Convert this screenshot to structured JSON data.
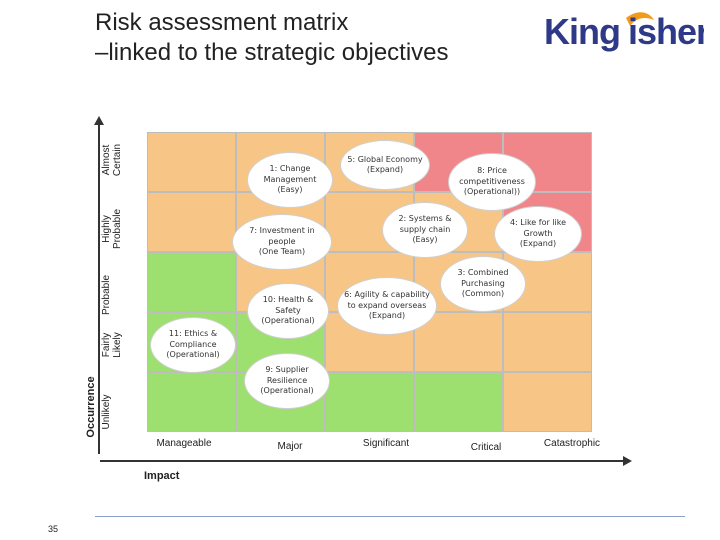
{
  "title": {
    "line1": "Risk assessment matrix",
    "line2": "–linked to the strategic objectives"
  },
  "logo": {
    "text": "Kingfisher"
  },
  "axes": {
    "y_title": "Occurrence",
    "x_title": "Impact",
    "rows": [
      "Almost\nCertain",
      "Highly\nProbable",
      "Probable",
      "Fairly\nLikely",
      "Unlikely"
    ],
    "columns": [
      "Manageable",
      "Major",
      "Significant",
      "Critical",
      "Catastrophic"
    ]
  },
  "colors": {
    "green": "#9de06f",
    "amber": "#f7c687",
    "red": "#f0858a"
  },
  "matrix": [
    [
      "amber",
      "amber",
      "amber",
      "red",
      "red"
    ],
    [
      "amber",
      "amber",
      "amber",
      "amber",
      "red"
    ],
    [
      "green",
      "amber",
      "amber",
      "amber",
      "amber"
    ],
    [
      "green",
      "green",
      "amber",
      "amber",
      "amber"
    ],
    [
      "green",
      "green",
      "green",
      "green",
      "amber"
    ]
  ],
  "risks": [
    {
      "id": "risk-1",
      "text": "1: Change\nManagement\n(Easy)"
    },
    {
      "id": "risk-5",
      "text": "5: Global Economy\n(Expand)"
    },
    {
      "id": "risk-8",
      "text": "8: Price\ncompetitiveness\n(Operational))"
    },
    {
      "id": "risk-2",
      "text": "2: Systems &\nsupply chain\n(Easy)"
    },
    {
      "id": "risk-4",
      "text": "4: Like for like\nGrowth\n(Expand)"
    },
    {
      "id": "risk-7",
      "text": "7: Investment in\npeople\n(One Team)"
    },
    {
      "id": "risk-3",
      "text": "3: Combined\nPurchasing\n(Common)"
    },
    {
      "id": "risk-10",
      "text": "10: Health &\nSafety\n(Operational)"
    },
    {
      "id": "risk-6",
      "text": "6: Agility & capability\nto expand overseas\n(Expand)"
    },
    {
      "id": "risk-11",
      "text": "11: Ethics &\nCompliance\n(Operational)"
    },
    {
      "id": "risk-9",
      "text": "9: Supplier\nResilience\n(Operational)"
    }
  ],
  "page_number": "35"
}
